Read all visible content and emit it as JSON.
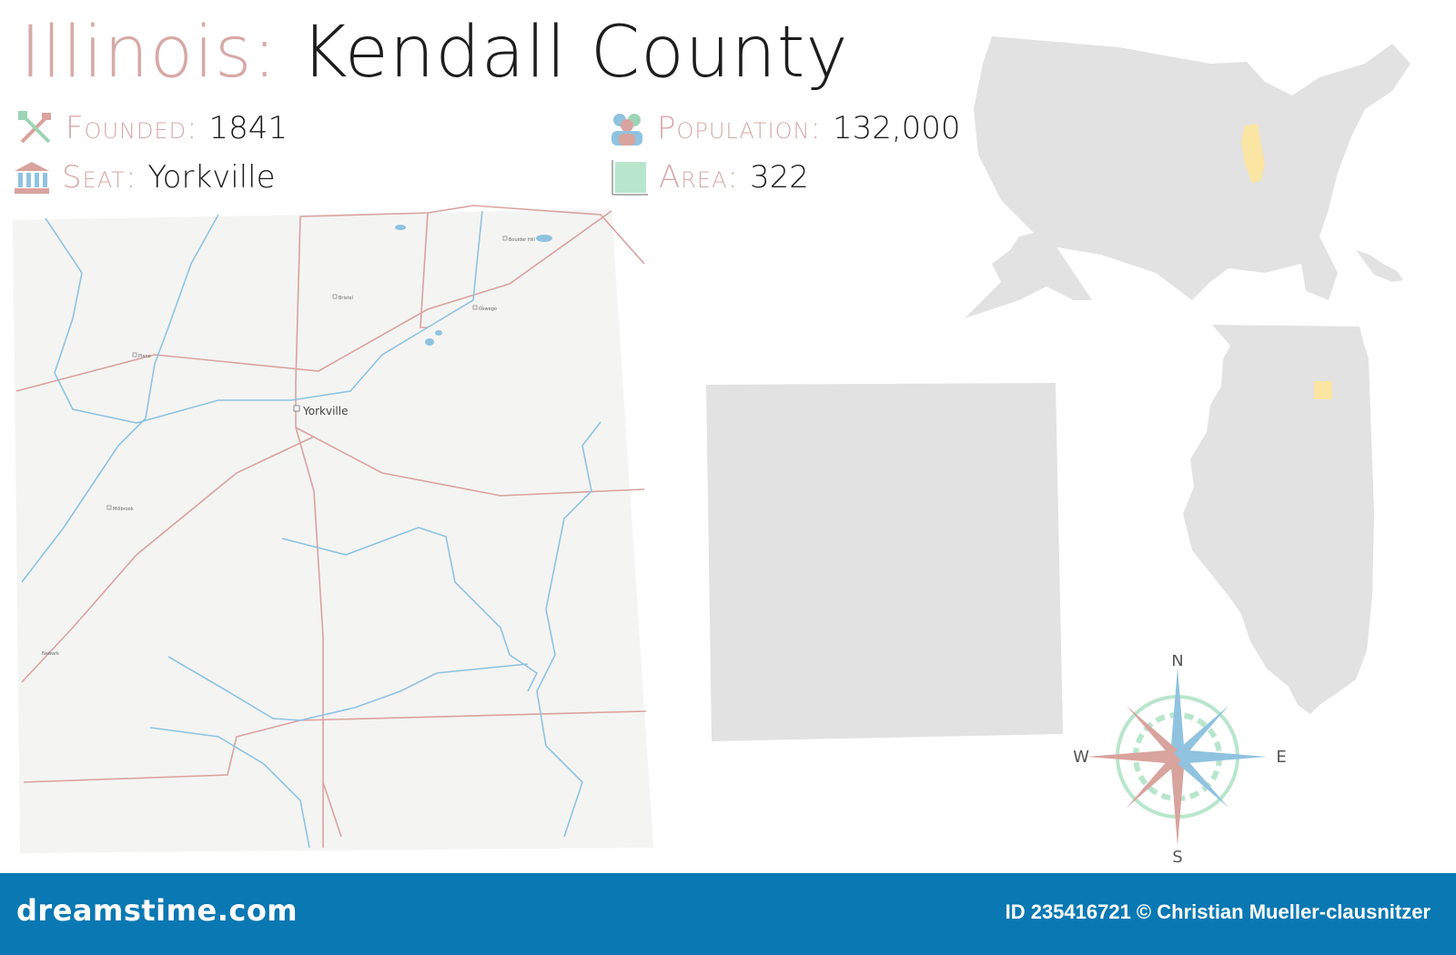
{
  "title": {
    "state": "Illinois:",
    "county": "Kendall County"
  },
  "facts": {
    "founded": {
      "label": "Founded:",
      "value": "1841",
      "icon": "shovel-axe-icon"
    },
    "seat": {
      "label": "Seat:",
      "value": "Yorkville",
      "icon": "courthouse-icon"
    },
    "population": {
      "label": "Population:",
      "value": "132,000",
      "icon": "people-icon"
    },
    "area": {
      "label": "Area:",
      "value": "322",
      "icon": "area-square-icon"
    }
  },
  "map": {
    "towns": [
      {
        "name": "Yorkville",
        "major": true
      },
      {
        "name": "Boulder Hill",
        "major": false
      },
      {
        "name": "Oswego",
        "major": false
      },
      {
        "name": "Bristol",
        "major": false
      },
      {
        "name": "Plano",
        "major": false
      },
      {
        "name": "Millbrook",
        "major": false
      },
      {
        "name": "Newark",
        "major": false
      }
    ],
    "colors": {
      "land": "#f4f4f3",
      "road": "#d9a39e",
      "river": "#8fc3e0",
      "highlight": "#fbe5a3",
      "silhouette": "#e2e2e2"
    }
  },
  "compass": {
    "n": "N",
    "e": "E",
    "s": "S",
    "w": "W"
  },
  "footer": {
    "brand": "dreamstime.com",
    "credit": "ID 235416721 © Christian Mueller-clausnitzer"
  }
}
